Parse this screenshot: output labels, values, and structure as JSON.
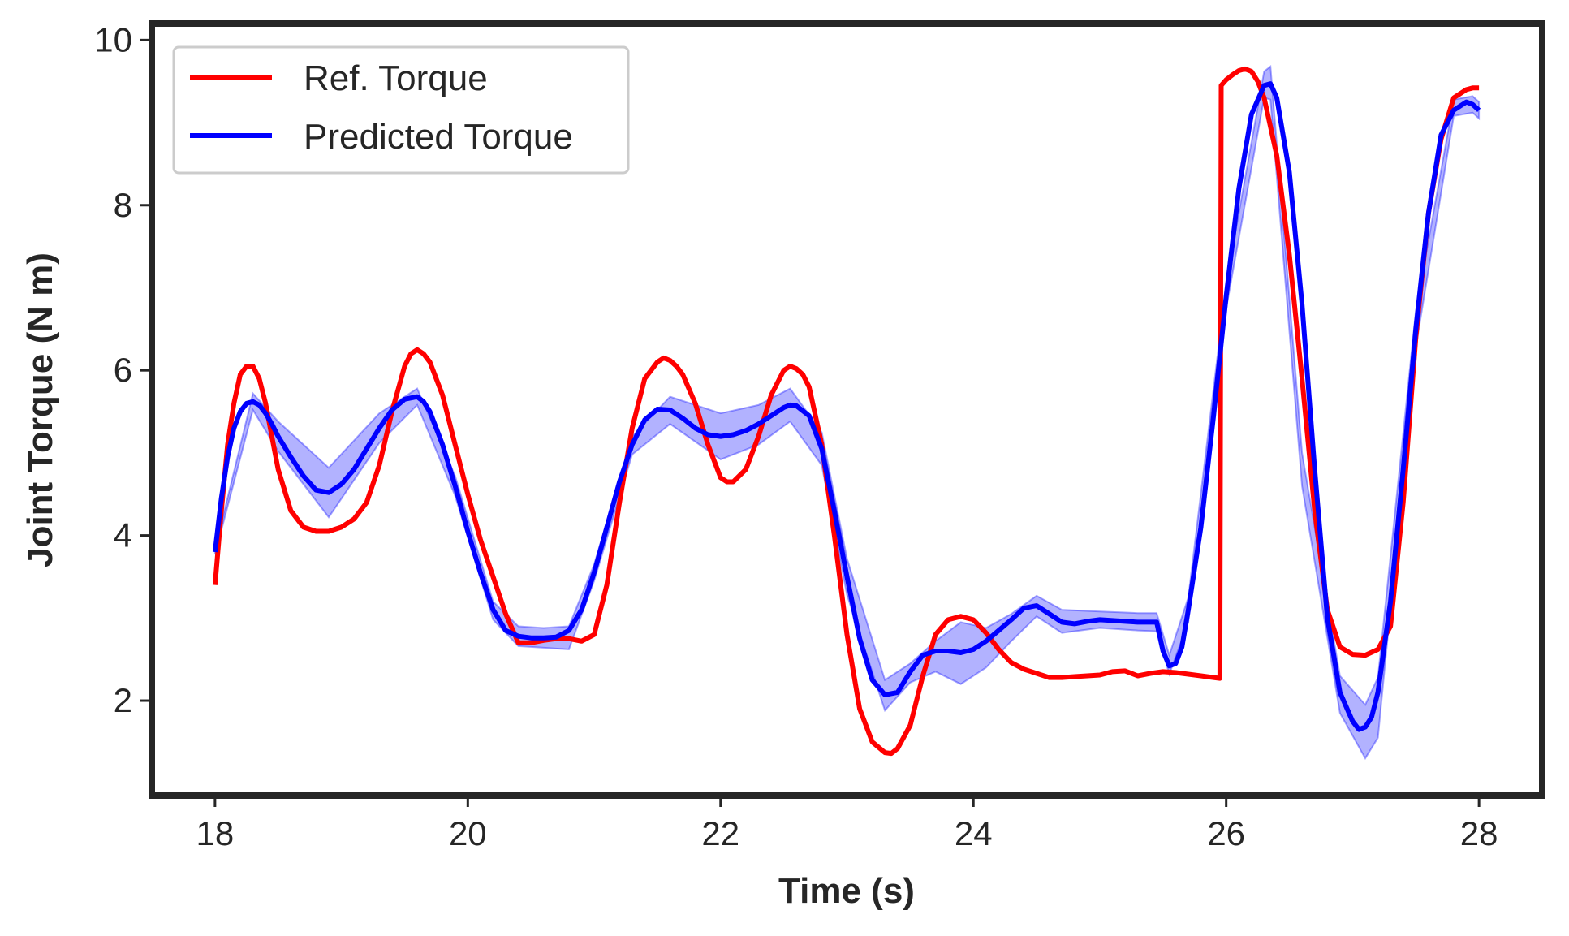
{
  "chart_data": {
    "type": "line",
    "title": "",
    "xlabel": "Time (s)",
    "ylabel": "Joint Torque (N m)",
    "xlim": [
      17.5,
      28.5
    ],
    "ylim": [
      0.85,
      10.2
    ],
    "xticks": [
      18,
      20,
      22,
      24,
      26,
      28
    ],
    "yticks": [
      2,
      4,
      6,
      8,
      10
    ],
    "grid": false,
    "legend_position": "top-left",
    "colors": {
      "ref": "#ff0000",
      "pred": "#0000ff",
      "band": "#0000ff",
      "frame": "#262626",
      "legend_border": "#cccccc"
    },
    "series": [
      {
        "name": "Ref. Torque",
        "color": "#ff0000",
        "x": [
          18.0,
          18.05,
          18.1,
          18.15,
          18.2,
          18.25,
          18.3,
          18.35,
          18.4,
          18.45,
          18.5,
          18.6,
          18.7,
          18.8,
          18.9,
          19.0,
          19.1,
          19.2,
          19.3,
          19.4,
          19.5,
          19.55,
          19.6,
          19.65,
          19.7,
          19.8,
          19.9,
          20.0,
          20.1,
          20.2,
          20.3,
          20.4,
          20.5,
          20.6,
          20.7,
          20.8,
          20.9,
          21.0,
          21.1,
          21.2,
          21.3,
          21.4,
          21.5,
          21.55,
          21.6,
          21.65,
          21.7,
          21.8,
          21.9,
          22.0,
          22.05,
          22.1,
          22.2,
          22.3,
          22.4,
          22.5,
          22.55,
          22.6,
          22.65,
          22.7,
          22.8,
          22.9,
          23.0,
          23.1,
          23.2,
          23.3,
          23.35,
          23.4,
          23.5,
          23.6,
          23.7,
          23.8,
          23.9,
          24.0,
          24.1,
          24.2,
          24.3,
          24.4,
          24.5,
          24.6,
          24.7,
          24.8,
          24.9,
          25.0,
          25.1,
          25.2,
          25.3,
          25.4,
          25.5,
          25.6,
          25.7,
          25.8,
          25.9,
          25.95,
          25.96,
          26.0,
          26.05,
          26.1,
          26.15,
          26.2,
          26.25,
          26.3,
          26.4,
          26.5,
          26.6,
          26.7,
          26.8,
          26.9,
          27.0,
          27.1,
          27.2,
          27.3,
          27.4,
          27.5,
          27.6,
          27.7,
          27.8,
          27.9,
          27.95,
          28.0
        ],
        "y": [
          3.4,
          4.3,
          5.1,
          5.6,
          5.95,
          6.05,
          6.05,
          5.9,
          5.6,
          5.2,
          4.8,
          4.3,
          4.1,
          4.05,
          4.05,
          4.1,
          4.2,
          4.4,
          4.85,
          5.5,
          6.05,
          6.2,
          6.25,
          6.2,
          6.1,
          5.7,
          5.1,
          4.5,
          3.95,
          3.5,
          3.05,
          2.7,
          2.7,
          2.73,
          2.75,
          2.75,
          2.72,
          2.8,
          3.4,
          4.4,
          5.3,
          5.9,
          6.1,
          6.15,
          6.12,
          6.05,
          5.95,
          5.6,
          5.1,
          4.7,
          4.65,
          4.65,
          4.8,
          5.2,
          5.7,
          6.0,
          6.05,
          6.02,
          5.95,
          5.8,
          5.1,
          4.0,
          2.8,
          1.9,
          1.5,
          1.37,
          1.36,
          1.42,
          1.7,
          2.3,
          2.8,
          2.98,
          3.02,
          2.98,
          2.82,
          2.62,
          2.46,
          2.38,
          2.33,
          2.28,
          2.28,
          2.29,
          2.3,
          2.31,
          2.35,
          2.36,
          2.3,
          2.33,
          2.35,
          2.34,
          2.32,
          2.3,
          2.28,
          2.27,
          9.45,
          9.52,
          9.58,
          9.63,
          9.65,
          9.62,
          9.5,
          9.3,
          8.6,
          7.4,
          5.9,
          4.3,
          3.1,
          2.65,
          2.56,
          2.55,
          2.62,
          2.9,
          4.4,
          6.4,
          7.9,
          8.8,
          9.3,
          9.4,
          9.42,
          9.42
        ]
      },
      {
        "name": "Predicted Torque",
        "color": "#0000ff",
        "x": [
          18.0,
          18.05,
          18.1,
          18.15,
          18.2,
          18.25,
          18.3,
          18.35,
          18.4,
          18.45,
          18.5,
          18.6,
          18.7,
          18.8,
          18.9,
          19.0,
          19.1,
          19.2,
          19.3,
          19.4,
          19.5,
          19.6,
          19.65,
          19.7,
          19.8,
          19.9,
          20.0,
          20.1,
          20.2,
          20.3,
          20.4,
          20.5,
          20.6,
          20.7,
          20.8,
          20.9,
          21.0,
          21.1,
          21.2,
          21.3,
          21.4,
          21.5,
          21.6,
          21.7,
          21.8,
          21.9,
          22.0,
          22.1,
          22.2,
          22.3,
          22.4,
          22.5,
          22.55,
          22.6,
          22.7,
          22.8,
          22.9,
          23.0,
          23.1,
          23.2,
          23.3,
          23.4,
          23.5,
          23.6,
          23.7,
          23.8,
          23.9,
          24.0,
          24.1,
          24.2,
          24.3,
          24.4,
          24.5,
          24.6,
          24.7,
          24.8,
          24.9,
          25.0,
          25.1,
          25.2,
          25.3,
          25.4,
          25.45,
          25.5,
          25.55,
          25.6,
          25.65,
          25.7,
          25.8,
          25.9,
          26.0,
          26.1,
          26.2,
          26.3,
          26.35,
          26.4,
          26.5,
          26.6,
          26.7,
          26.8,
          26.9,
          27.0,
          27.05,
          27.1,
          27.15,
          27.2,
          27.3,
          27.4,
          27.5,
          27.6,
          27.7,
          27.8,
          27.9,
          27.95,
          28.0
        ],
        "y": [
          3.8,
          4.45,
          4.95,
          5.3,
          5.5,
          5.6,
          5.62,
          5.58,
          5.48,
          5.35,
          5.2,
          4.95,
          4.72,
          4.55,
          4.52,
          4.62,
          4.8,
          5.05,
          5.3,
          5.52,
          5.65,
          5.68,
          5.62,
          5.5,
          5.1,
          4.6,
          4.05,
          3.55,
          3.1,
          2.85,
          2.78,
          2.76,
          2.76,
          2.77,
          2.85,
          3.1,
          3.55,
          4.1,
          4.65,
          5.1,
          5.4,
          5.53,
          5.52,
          5.42,
          5.3,
          5.22,
          5.2,
          5.22,
          5.27,
          5.35,
          5.45,
          5.55,
          5.58,
          5.57,
          5.45,
          5.05,
          4.3,
          3.5,
          2.75,
          2.25,
          2.07,
          2.1,
          2.35,
          2.55,
          2.6,
          2.6,
          2.58,
          2.62,
          2.72,
          2.85,
          2.98,
          3.12,
          3.15,
          3.05,
          2.95,
          2.93,
          2.96,
          2.98,
          2.97,
          2.96,
          2.95,
          2.95,
          2.95,
          2.6,
          2.42,
          2.45,
          2.65,
          3.1,
          4.1,
          5.45,
          6.9,
          8.2,
          9.1,
          9.45,
          9.47,
          9.3,
          8.4,
          6.8,
          4.8,
          3.0,
          2.1,
          1.75,
          1.65,
          1.68,
          1.8,
          2.1,
          3.2,
          4.8,
          6.5,
          7.9,
          8.85,
          9.15,
          9.25,
          9.22,
          9.15
        ],
        "band": {
          "x": [
            18.0,
            18.3,
            18.5,
            18.9,
            19.3,
            19.6,
            19.9,
            20.2,
            20.4,
            20.6,
            20.8,
            21.0,
            21.3,
            21.6,
            22.0,
            22.3,
            22.55,
            22.8,
            23.0,
            23.3,
            23.5,
            23.7,
            23.9,
            24.1,
            24.3,
            24.5,
            24.7,
            25.0,
            25.3,
            25.45,
            25.55,
            25.7,
            26.0,
            26.3,
            26.35,
            26.6,
            26.9,
            27.1,
            27.2,
            27.5,
            27.8,
            27.95,
            28.0
          ],
          "upper": [
            3.83,
            5.72,
            5.38,
            4.82,
            5.48,
            5.78,
            4.72,
            3.2,
            2.9,
            2.88,
            2.9,
            3.65,
            5.2,
            5.68,
            5.48,
            5.58,
            5.78,
            5.25,
            3.72,
            2.25,
            2.45,
            2.72,
            2.95,
            2.88,
            3.05,
            3.27,
            3.1,
            3.08,
            3.06,
            3.06,
            2.55,
            3.25,
            7.05,
            9.62,
            9.68,
            5.0,
            2.3,
            1.95,
            2.28,
            6.72,
            9.28,
            9.32,
            9.25
          ],
          "lower": [
            3.77,
            5.52,
            5.02,
            4.22,
            5.12,
            5.58,
            4.48,
            2.98,
            2.66,
            2.64,
            2.62,
            3.45,
            4.98,
            5.35,
            4.92,
            5.1,
            5.38,
            4.85,
            3.28,
            1.88,
            2.22,
            2.35,
            2.2,
            2.4,
            2.72,
            3.02,
            2.82,
            2.88,
            2.85,
            2.84,
            2.32,
            2.95,
            6.75,
            9.3,
            9.28,
            4.6,
            1.85,
            1.3,
            1.55,
            6.28,
            9.08,
            9.12,
            9.05
          ]
        }
      }
    ]
  }
}
